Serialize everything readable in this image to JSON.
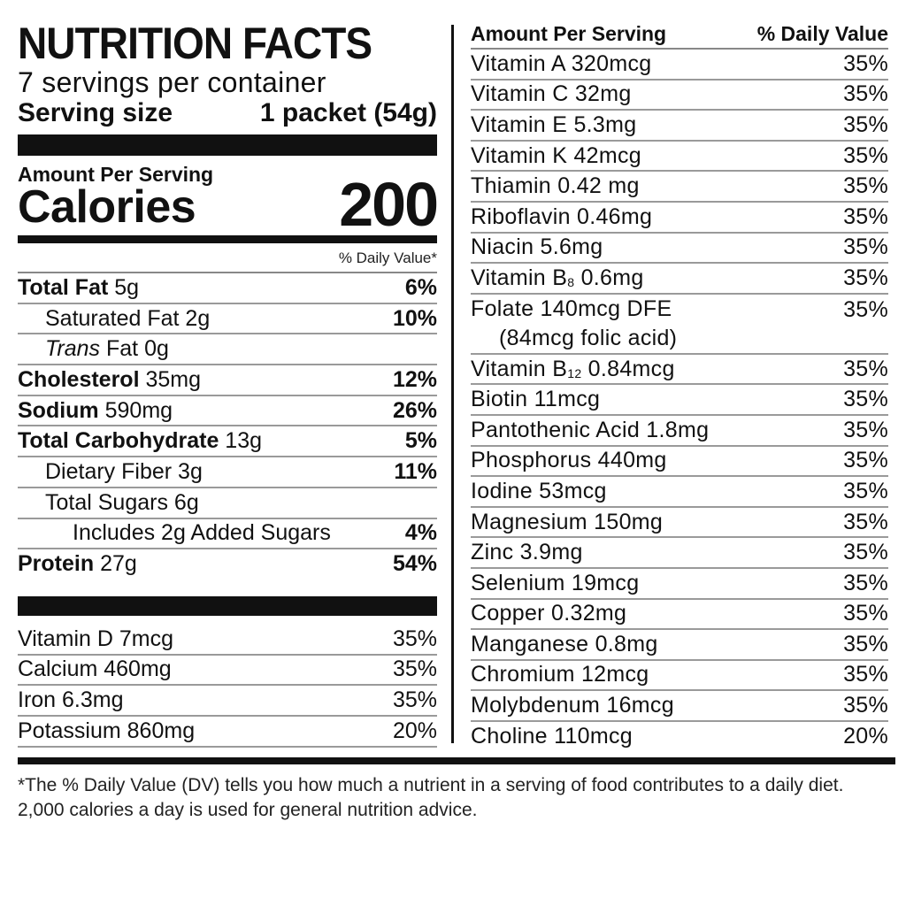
{
  "label": {
    "title": "NUTRITION FACTS",
    "servings": "7 servings per container",
    "serving_size_label": "Serving size",
    "serving_size_value": "1 packet (54g)",
    "amount_per_serving": "Amount Per Serving",
    "calories_label": "Calories",
    "calories_value": "200",
    "dv_header": "% Daily Value*",
    "nutrients": [
      {
        "name": "Total Fat",
        "amount": " 5g",
        "dv": "6%"
      },
      {
        "name": "Saturated Fat 2g",
        "dv": "10%"
      },
      {
        "name": "Trans",
        "amount": " Fat 0g",
        "dv": ""
      },
      {
        "name": "Cholesterol",
        "amount": " 35mg",
        "dv": "12%"
      },
      {
        "name": "Sodium",
        "amount": " 590mg",
        "dv": "26%"
      },
      {
        "name": "Total Carbohydrate",
        "amount": " 13g",
        "dv": "5%"
      },
      {
        "name": "Dietary Fiber 3g",
        "dv": "11%"
      },
      {
        "name": "Total Sugars 6g",
        "dv": ""
      },
      {
        "name": "Includes 2g Added Sugars",
        "dv": "4%"
      },
      {
        "name": "Protein",
        "amount": " 27g",
        "dv": "54%"
      }
    ],
    "vitamins_left": [
      {
        "name": "Vitamin D 7mcg",
        "dv": "35%"
      },
      {
        "name": "Calcium 460mg",
        "dv": "35%"
      },
      {
        "name": "Iron 6.3mg",
        "dv": "35%"
      },
      {
        "name": "Potassium 860mg",
        "dv": "20%"
      }
    ]
  },
  "right_column": {
    "header_left": "Amount Per Serving",
    "header_right": "% Daily Value",
    "rows": [
      {
        "name": "Vitamin A  320mcg",
        "dv": "35%"
      },
      {
        "name": "Vitamin C  32mg",
        "dv": "35%"
      },
      {
        "name": "Vitamin E  5.3mg",
        "dv": "35%"
      },
      {
        "name": "Vitamin K  42mcg",
        "dv": "35%"
      },
      {
        "name": "Thiamin  0.42 mg",
        "dv": "35%"
      },
      {
        "name": "Riboflavin  0.46mg",
        "dv": "35%"
      },
      {
        "name": "Niacin  5.6mg",
        "dv": "35%"
      },
      {
        "name": "Vitamin B",
        "sub": "8",
        "amount": "  0.6mg",
        "dv": "35%"
      },
      {
        "name": "Folate  140mcg DFE",
        "line2": "(84mcg folic acid)",
        "dv": "35%"
      },
      {
        "name": "Vitamin B",
        "sub": "12",
        "amount": "  0.84mcg",
        "dv": "35%"
      },
      {
        "name": "Biotin  11mcg",
        "dv": "35%"
      },
      {
        "name": "Pantothenic Acid  1.8mg",
        "dv": "35%"
      },
      {
        "name": "Phosphorus  440mg",
        "dv": "35%"
      },
      {
        "name": "Iodine  53mcg",
        "dv": "35%"
      },
      {
        "name": "Magnesium  150mg",
        "dv": "35%"
      },
      {
        "name": "Zinc  3.9mg",
        "dv": "35%"
      },
      {
        "name": "Selenium  19mcg",
        "dv": "35%"
      },
      {
        "name": "Copper  0.32mg",
        "dv": "35%"
      },
      {
        "name": "Manganese  0.8mg",
        "dv": "35%"
      },
      {
        "name": "Chromium  12mcg",
        "dv": "35%"
      },
      {
        "name": "Molybdenum  16mcg",
        "dv": "35%"
      },
      {
        "name": "Choline  110mcg",
        "dv": "20%"
      }
    ]
  },
  "footnote": "*The % Daily Value (DV) tells you how  much a nutrient in a serving of food contributes to a daily diet. 2,000 calories a day is used for general nutrition advice."
}
